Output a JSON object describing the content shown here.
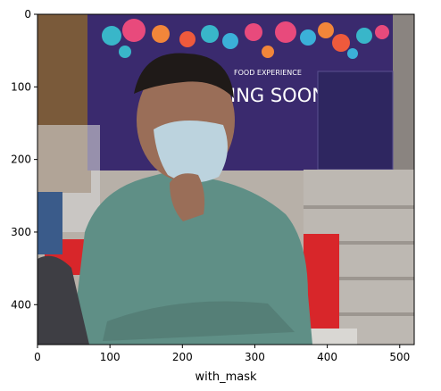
{
  "figure": {
    "xlabel": "with_mask",
    "x_ticks": [
      0,
      100,
      200,
      300,
      400,
      500
    ],
    "y_ticks": [
      0,
      100,
      200,
      300,
      400
    ],
    "x_range": [
      0,
      520
    ],
    "y_range": [
      0,
      455
    ]
  },
  "scene": {
    "banner_line1": "FOOD EXPERIENCE",
    "banner_line2": "ING SOON",
    "banner_color": "#3a2a6e",
    "wall_color": "#c9c3bd",
    "shirt_color": "#5f8f86",
    "mask_color": "#bcd3de",
    "chair_color": "#d8262a"
  }
}
